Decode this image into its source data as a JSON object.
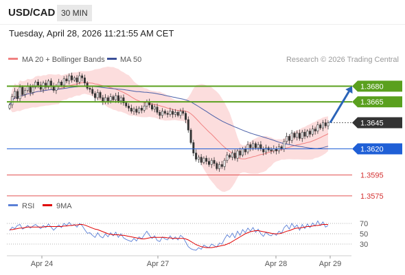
{
  "header": {
    "symbol": "USD/CAD",
    "timeframe": "30 MIN",
    "datetime": "Tuesday, April 28, 2026 11:21:55 AM CET"
  },
  "legend": {
    "ma20": "MA 20 + Bollinger Bands",
    "ma50": "MA 50",
    "credit": "Research © 2026 Trading Central",
    "rsi": "RSI",
    "rsi_ma": "9MA"
  },
  "colors": {
    "ma20": "#f08080",
    "ma50": "#4a5fa8",
    "bands": "#fbd5d5",
    "resistance": "#5aa01e",
    "support_blue": "#1f5fd6",
    "support_red": "#e25050",
    "current": "#333333",
    "arrow": "#2a63b8",
    "rsi": "#5a7fd6",
    "rsi_ma": "#e00000"
  },
  "chart_data": [
    {
      "type": "candlestick",
      "x_ticks": [
        "Apr 24",
        "Apr 27",
        "Apr 28",
        "Apr 29"
      ],
      "ylim": [
        1.3565,
        1.37
      ],
      "price_levels": [
        {
          "value": 1.368,
          "label": "1.3680",
          "kind": "resistance"
        },
        {
          "value": 1.3665,
          "label": "1.3665",
          "kind": "resistance"
        },
        {
          "value": 1.3645,
          "label": "1.3645",
          "kind": "current"
        },
        {
          "value": 1.362,
          "label": "1.3620",
          "kind": "support-blue"
        },
        {
          "value": 1.3595,
          "label": "1.3595",
          "kind": "support-red"
        },
        {
          "value": 1.3575,
          "label": "1.3575",
          "kind": "support-red"
        }
      ],
      "close": [
        1.3662,
        1.367,
        1.3675,
        1.3668,
        1.3679,
        1.3672,
        1.3676,
        1.368,
        1.3674,
        1.3679,
        1.3684,
        1.3681,
        1.3677,
        1.3683,
        1.3679,
        1.3685,
        1.368,
        1.3676,
        1.368,
        1.3684,
        1.3681,
        1.3687,
        1.3685,
        1.369,
        1.3686,
        1.3688,
        1.3684,
        1.369,
        1.3688,
        1.3683,
        1.3678,
        1.3677,
        1.3673,
        1.3669,
        1.3674,
        1.3669,
        1.3665,
        1.3669,
        1.3666,
        1.367,
        1.3667,
        1.3671,
        1.3666,
        1.3669,
        1.3664,
        1.3661,
        1.3659,
        1.3656,
        1.3658,
        1.3655,
        1.3659,
        1.3657,
        1.3661,
        1.3665,
        1.3662,
        1.3658,
        1.366,
        1.3655,
        1.3652,
        1.3656,
        1.3654,
        1.3653,
        1.3656,
        1.3653,
        1.3655,
        1.3652,
        1.3656,
        1.3654,
        1.3648,
        1.3638,
        1.3626,
        1.3616,
        1.361,
        1.3612,
        1.3607,
        1.3611,
        1.3608,
        1.3605,
        1.3609,
        1.3606,
        1.3601,
        1.3605,
        1.3603,
        1.3609,
        1.3614,
        1.3612,
        1.3616,
        1.3611,
        1.3618,
        1.3614,
        1.362,
        1.3617,
        1.3624,
        1.3621,
        1.3625,
        1.3621,
        1.3624,
        1.362,
        1.3617,
        1.3621,
        1.3619,
        1.3618,
        1.362,
        1.3618,
        1.3622,
        1.362,
        1.3627,
        1.3632,
        1.3628,
        1.3635,
        1.3631,
        1.3635,
        1.363,
        1.3636,
        1.3632,
        1.3637,
        1.3634,
        1.3639,
        1.3637,
        1.3643,
        1.364,
        1.3645,
        1.3642,
        1.3645
      ]
    },
    {
      "type": "line",
      "title": "RSI",
      "y_ticks": [
        70,
        50,
        30
      ],
      "ylim": [
        10,
        90
      ],
      "series": [
        {
          "name": "RSI",
          "values": [
            56,
            63,
            60,
            66,
            68,
            59,
            62,
            66,
            61,
            65,
            68,
            64,
            60,
            66,
            62,
            69,
            63,
            57,
            62,
            67,
            62,
            70,
            66,
            72,
            66,
            68,
            63,
            70,
            66,
            58,
            51,
            52,
            47,
            43,
            52,
            45,
            42,
            50,
            44,
            52,
            46,
            53,
            43,
            50,
            42,
            39,
            37,
            35,
            41,
            36,
            44,
            40,
            48,
            55,
            47,
            41,
            46,
            37,
            35,
            44,
            40,
            38,
            46,
            39,
            44,
            38,
            47,
            43,
            34,
            25,
            21,
            19,
            18,
            23,
            20,
            28,
            25,
            23,
            30,
            27,
            24,
            32,
            30,
            40,
            48,
            43,
            51,
            42,
            55,
            47,
            58,
            52,
            61,
            55,
            62,
            53,
            59,
            50,
            45,
            53,
            48,
            46,
            51,
            47,
            55,
            51,
            62,
            67,
            59,
            70,
            62,
            67,
            57,
            68,
            60,
            69,
            62,
            71,
            65,
            75,
            66,
            73,
            63,
            66
          ]
        },
        {
          "name": "9MA",
          "values": [
            58,
            58,
            59,
            60,
            61,
            61,
            62,
            63,
            63,
            63,
            63,
            63,
            63,
            63,
            64,
            64,
            64,
            64,
            64,
            64,
            64,
            65,
            65,
            66,
            66,
            67,
            67,
            68,
            68,
            67,
            65,
            63,
            61,
            59,
            58,
            56,
            54,
            52,
            50,
            49,
            48,
            48,
            48,
            47,
            47,
            46,
            45,
            44,
            43,
            42,
            41,
            40,
            40,
            41,
            42,
            43,
            43,
            43,
            43,
            43,
            43,
            42,
            42,
            41,
            41,
            41,
            41,
            41,
            40,
            38,
            35,
            32,
            29,
            27,
            25,
            24,
            23,
            23,
            23,
            24,
            25,
            26,
            27,
            28,
            30,
            32,
            35,
            38,
            41,
            44,
            47,
            50,
            52,
            54,
            55,
            56,
            56,
            55,
            54,
            53,
            52,
            51,
            50,
            50,
            50,
            51,
            53,
            55,
            56,
            58,
            60,
            61,
            61,
            62,
            63,
            64,
            64,
            65,
            66,
            66,
            67,
            68,
            68,
            68
          ]
        }
      ]
    }
  ]
}
